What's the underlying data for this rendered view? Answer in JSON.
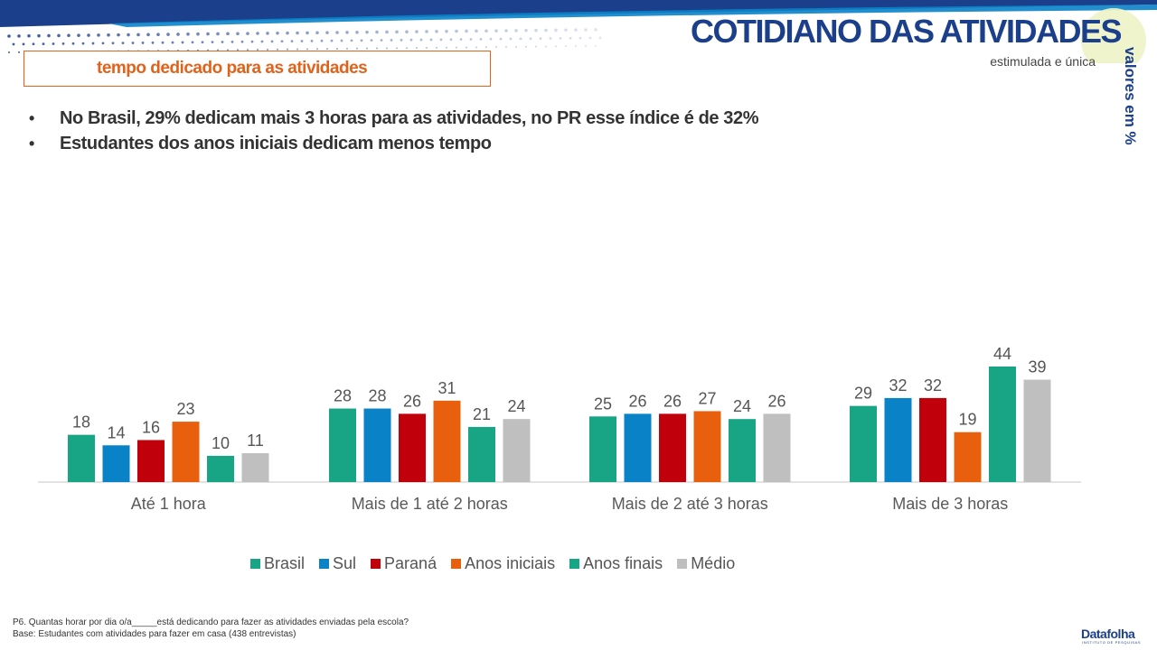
{
  "header": {
    "title": "COTIDIANO DAS ATIVIDADES",
    "subtitle": "estimulada e única",
    "units": "valores em %"
  },
  "section": {
    "title": "tempo dedicado para as atividades"
  },
  "bullets": [
    "No Brasil, 29% dedicam mais 3 horas para as atividades, no PR esse índice é de 32%",
    "Estudantes dos anos iniciais dedicam menos tempo"
  ],
  "chart_data": {
    "type": "bar",
    "categories": [
      "Até 1 hora",
      "Mais de 1 até 2 horas",
      "Mais de 2 até 3 horas",
      "Mais de 3 horas"
    ],
    "series": [
      {
        "name": "Brasil",
        "color": "#17a585",
        "values": [
          18,
          28,
          25,
          29
        ]
      },
      {
        "name": "Sul",
        "color": "#0a82c8",
        "values": [
          14,
          28,
          26,
          32
        ]
      },
      {
        "name": "Paraná",
        "color": "#c0000b",
        "values": [
          16,
          26,
          26,
          32
        ]
      },
      {
        "name": "Anos iniciais",
        "color": "#e8600d",
        "values": [
          23,
          31,
          27,
          19
        ]
      },
      {
        "name": "Anos finais",
        "color": "#17a585",
        "values": [
          10,
          21,
          24,
          44
        ]
      },
      {
        "name": "Médio",
        "color": "#bfbfbf",
        "values": [
          11,
          24,
          26,
          39
        ]
      }
    ],
    "ylim": [
      0,
      50
    ],
    "legend_position": "bottom",
    "grid": false
  },
  "footnote": {
    "question": "P6. Quantas horar por dia o/a_____está dedicando para fazer as atividades enviadas pela escola?",
    "base": "Base: Estudantes com atividades para fazer em casa (438 entrevistas)"
  },
  "brand": {
    "name": "Datafolha",
    "tagline": "INSTITUTO DE PESQUISAS"
  }
}
